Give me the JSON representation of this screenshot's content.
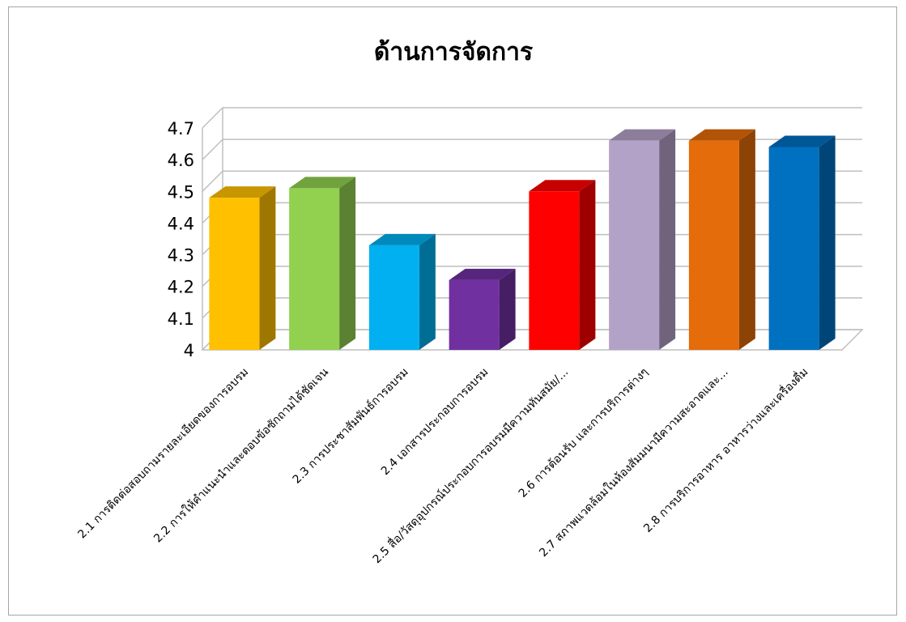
{
  "chart_data": {
    "type": "bar",
    "title": "ด้านการจัดการ",
    "xlabel": "",
    "ylabel": "",
    "ylim": [
      4,
      4.7
    ],
    "yticks": [
      "4",
      "4.1",
      "4.2",
      "4.3",
      "4.4",
      "4.5",
      "4.6",
      "4.7"
    ],
    "grid": true,
    "legend": "none",
    "style": "3d-column",
    "categories": [
      "2.1 การติดต่อสอบถามรายละเอียดของการอบรม",
      "2.2 การให้คำแนะนำและตอบข้อซักถามได้ชัดเจน",
      "2.3 การประชาสัมพันธ์การอบรม",
      "2.4 เอกสารประกอบการอบรม",
      "2.5 สื่อ/วัสดุอุปกรณ์ประกอบการอบรมมีความทันสมัย/...",
      "2.6 การต้อนรับ และการบริการต่างๆ",
      "2.7 สภาพแวดล้อมในห้องสัมมนามีความสะอาดและ...",
      "2.8 การบริการอาหาร อาหารว่างและเครื่องดื่ม"
    ],
    "values": [
      4.48,
      4.51,
      4.33,
      4.22,
      4.5,
      4.66,
      4.66,
      4.64
    ],
    "colors": [
      "#FFC000",
      "#92D050",
      "#00B0F0",
      "#7030A0",
      "#FF0000",
      "#B3A2C7",
      "#E46C0A",
      "#0070C0"
    ]
  }
}
